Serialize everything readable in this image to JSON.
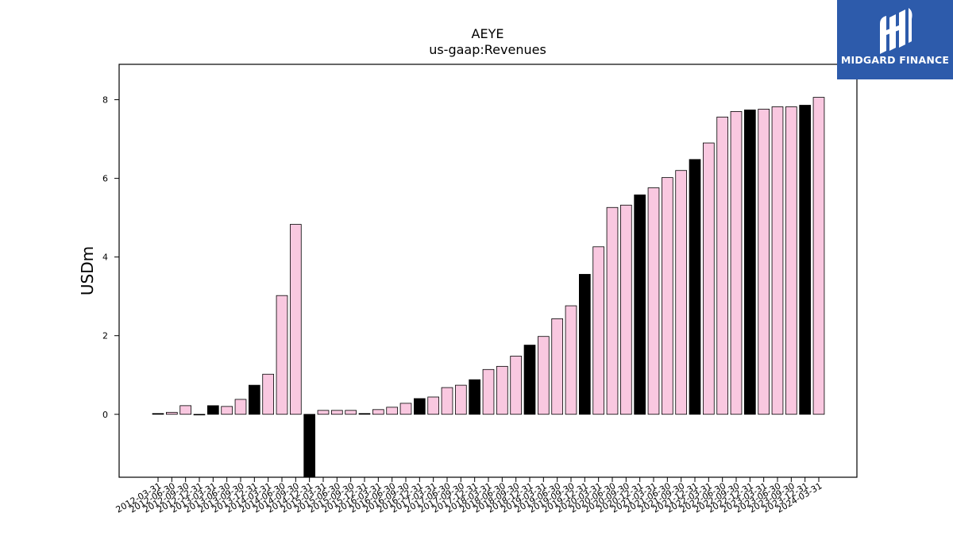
{
  "logo": {
    "text": "MIDGARD FINANCE",
    "icon": "midgard-logo-icon",
    "background": "#2d5bab"
  },
  "chart_data": {
    "type": "bar",
    "title": "AEYE",
    "subtitle": "us-gaap:Revenues",
    "xlabel": "",
    "ylabel": "USDm",
    "ylim": [
      -1.6,
      8.9
    ],
    "yticks": [
      0,
      2,
      4,
      6,
      8
    ],
    "grid": false,
    "colors": {
      "quarter": "#f9c8e0",
      "annual": "#000000",
      "edge": "#000000"
    },
    "categories": [
      "2012-03-31",
      "2012-06-30",
      "2012-09-30",
      "2012-12-31",
      "2013-03-31",
      "2013-06-30",
      "2013-09-30",
      "2013-12-31",
      "2014-03-31",
      "2014-06-30",
      "2014-09-30",
      "2014-12-31",
      "2015-03-31",
      "2015-06-30",
      "2015-09-30",
      "2015-12-31",
      "2016-03-31",
      "2016-06-30",
      "2016-09-30",
      "2016-12-31",
      "2017-03-31",
      "2017-06-30",
      "2017-09-30",
      "2017-12-31",
      "2018-03-31",
      "2018-06-30",
      "2018-09-30",
      "2018-12-31",
      "2019-03-31",
      "2019-06-30",
      "2019-09-30",
      "2019-12-31",
      "2020-03-31",
      "2020-06-30",
      "2020-09-30",
      "2020-12-31",
      "2021-03-31",
      "2021-06-30",
      "2021-09-30",
      "2021-12-31",
      "2022-03-31",
      "2022-06-30",
      "2022-09-30",
      "2022-12-31",
      "2023-03-31",
      "2023-06-30",
      "2023-09-30",
      "2023-12-31",
      "2024-03-31"
    ],
    "values": [
      0.02,
      0.05,
      0.22,
      0.0,
      0.22,
      0.2,
      0.38,
      0.74,
      1.02,
      3.02,
      4.83,
      -1.6,
      0.1,
      0.1,
      0.1,
      0.02,
      0.12,
      0.18,
      0.28,
      0.4,
      0.44,
      0.68,
      0.74,
      0.88,
      1.14,
      1.22,
      1.48,
      1.76,
      1.98,
      2.43,
      2.76,
      3.56,
      4.26,
      5.26,
      5.32,
      5.58,
      5.76,
      6.02,
      6.2,
      6.48,
      6.9,
      7.56,
      7.7,
      7.74,
      7.76,
      7.82,
      7.82,
      7.86,
      8.06
    ],
    "annual": [
      true,
      false,
      false,
      false,
      true,
      false,
      false,
      true,
      false,
      false,
      false,
      true,
      false,
      false,
      false,
      true,
      false,
      false,
      false,
      true,
      false,
      false,
      false,
      true,
      false,
      false,
      false,
      true,
      false,
      false,
      false,
      true,
      false,
      false,
      false,
      true,
      false,
      false,
      false,
      true,
      false,
      false,
      false,
      true,
      false,
      false,
      false,
      true,
      false
    ]
  }
}
